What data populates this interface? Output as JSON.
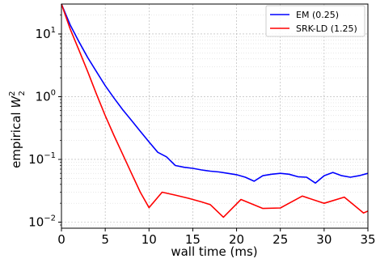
{
  "chart_data": {
    "type": "line",
    "xlabel": "wall time (ms)",
    "ylabel_main": "empirical ",
    "ylabel_symbol": "W",
    "ylabel_sub": "2",
    "ylabel_sup": "2",
    "xlim": [
      0,
      35
    ],
    "ylim": [
      0.008,
      30
    ],
    "yscale": "log",
    "grid": true,
    "legend_position": "top-right",
    "x_ticks": [
      0,
      5,
      10,
      15,
      20,
      25,
      30,
      35
    ],
    "x_tick_labels": [
      "0",
      "5",
      "10",
      "15",
      "20",
      "25",
      "30",
      "35"
    ],
    "y_ticks": [
      0.01,
      0.1,
      1,
      10
    ],
    "y_tick_bases": [
      "10",
      "10",
      "10",
      "10"
    ],
    "y_tick_exps": [
      "−2",
      "−1",
      "0",
      "1"
    ],
    "series": [
      {
        "name": "EM (0.25)",
        "color": "#0000ff",
        "x": [
          0,
          1,
          2,
          3,
          4,
          5,
          6,
          7,
          8,
          9,
          10,
          11,
          12,
          13,
          14,
          15,
          16,
          17,
          18,
          19,
          20,
          21,
          22,
          23,
          24,
          25,
          26,
          27,
          28,
          29,
          30,
          31,
          32,
          33,
          34,
          35
        ],
        "y": [
          30,
          14,
          7.5,
          4.2,
          2.5,
          1.5,
          0.95,
          0.62,
          0.42,
          0.28,
          0.19,
          0.13,
          0.11,
          0.08,
          0.075,
          0.072,
          0.068,
          0.065,
          0.063,
          0.06,
          0.057,
          0.052,
          0.045,
          0.055,
          0.058,
          0.06,
          0.058,
          0.053,
          0.052,
          0.042,
          0.055,
          0.062,
          0.055,
          0.052,
          0.055,
          0.06
        ]
      },
      {
        "name": "SRK-LD (1.25)",
        "color": "#ff0000",
        "x": [
          0,
          1,
          2,
          3,
          4,
          5,
          6,
          7,
          8,
          9,
          10,
          11.5,
          13,
          14.5,
          16,
          17,
          18.5,
          20.5,
          23,
          25,
          27.5,
          30,
          32.3,
          34.5,
          35
        ],
        "y": [
          30,
          12,
          5.5,
          2.5,
          1.1,
          0.5,
          0.24,
          0.12,
          0.06,
          0.03,
          0.017,
          0.03,
          0.027,
          0.024,
          0.021,
          0.019,
          0.012,
          0.023,
          0.0165,
          0.0168,
          0.026,
          0.02,
          0.025,
          0.014,
          0.015
        ]
      }
    ]
  }
}
